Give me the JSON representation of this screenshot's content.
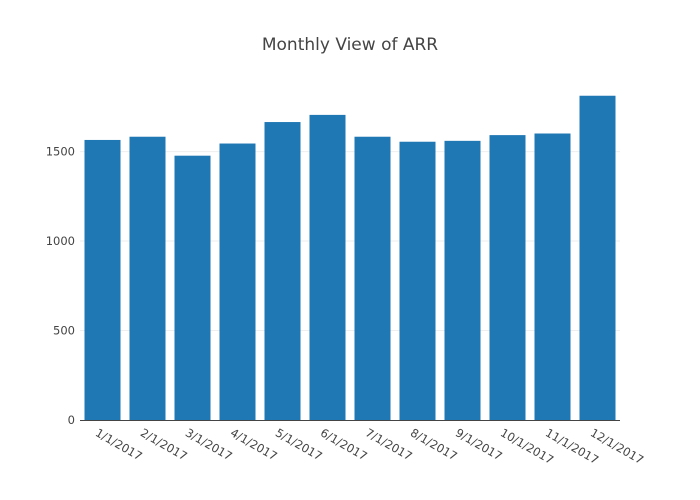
{
  "chart_data": {
    "type": "bar",
    "title": "Monthly View of ARR",
    "xlabel": "",
    "ylabel": "",
    "categories": [
      "1/1/2017",
      "2/1/2017",
      "3/1/2017",
      "4/1/2017",
      "5/1/2017",
      "6/1/2017",
      "7/1/2017",
      "8/1/2017",
      "9/1/2017",
      "10/1/2017",
      "11/1/2017",
      "12/1/2017"
    ],
    "values": [
      1565,
      1583,
      1477,
      1545,
      1665,
      1705,
      1583,
      1555,
      1560,
      1592,
      1601,
      1812
    ],
    "ylim": [
      0,
      1900
    ],
    "yticks": [
      0,
      500,
      1000,
      1500
    ],
    "grid": true,
    "bar_color": "#1f77b4"
  }
}
